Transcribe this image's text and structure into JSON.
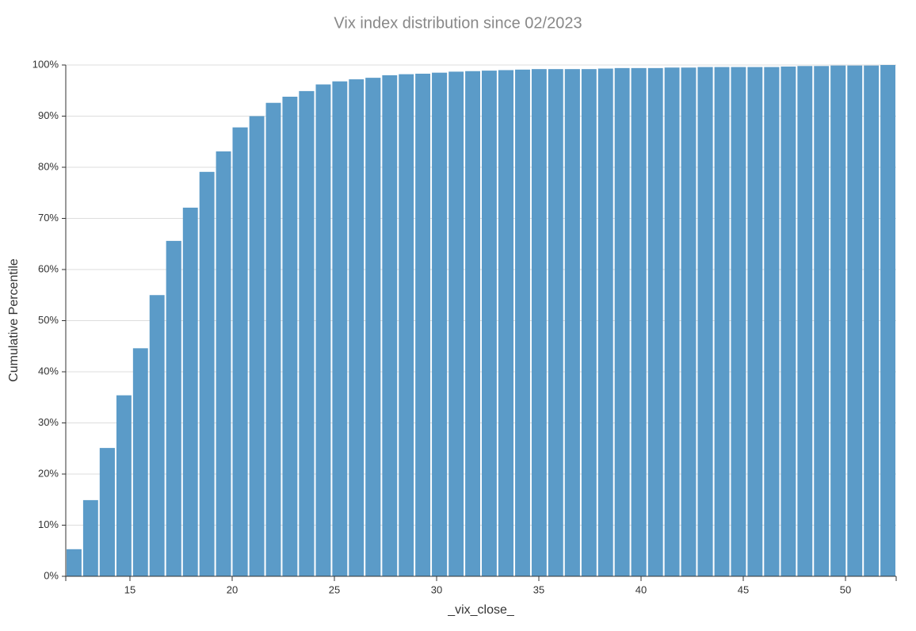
{
  "chart_data": {
    "type": "histogram",
    "title": "Vix index distribution since 02/2023",
    "x_label": "_vix_close_",
    "y_label": "Cumulative Percentile",
    "color": "#5b9bc8",
    "bins": [
      11.86,
      12.67,
      13.48,
      14.3,
      15.11,
      15.92,
      16.73,
      17.55,
      18.36,
      19.17,
      19.98,
      20.8,
      21.61,
      22.42,
      23.23,
      24.05,
      24.86,
      25.67,
      26.48,
      27.3,
      28.11,
      28.92,
      29.73,
      30.55,
      31.36,
      32.17,
      32.98,
      33.8,
      34.61,
      35.42,
      36.23,
      37.05,
      37.86,
      38.67,
      39.48,
      40.3,
      41.11,
      41.92,
      42.73,
      43.55,
      44.36,
      45.17,
      45.98,
      46.8,
      47.61,
      48.42,
      49.23,
      50.05,
      50.86,
      51.67,
      52.48
    ],
    "values": [
      5.3,
      14.9,
      25.1,
      35.4,
      44.6,
      55.0,
      65.6,
      72.1,
      79.1,
      83.1,
      87.8,
      90.0,
      92.6,
      93.8,
      94.9,
      96.2,
      96.8,
      97.2,
      97.5,
      98.0,
      98.2,
      98.3,
      98.5,
      98.7,
      98.8,
      98.9,
      99.0,
      99.1,
      99.2,
      99.2,
      99.2,
      99.2,
      99.3,
      99.4,
      99.4,
      99.4,
      99.5,
      99.5,
      99.6,
      99.6,
      99.6,
      99.6,
      99.6,
      99.7,
      99.8,
      99.8,
      99.9,
      99.9,
      99.9,
      100
    ],
    "xlim": [
      11.86,
      52.48
    ],
    "xticks": [
      15,
      20,
      25,
      30,
      35,
      40,
      45,
      50
    ],
    "ylim": [
      0,
      100
    ],
    "yticks": [
      {
        "value": 0,
        "label": "0%"
      },
      {
        "value": 10,
        "label": "10%"
      },
      {
        "value": 20,
        "label": "20%"
      },
      {
        "value": 30,
        "label": "30%"
      },
      {
        "value": 40,
        "label": "40%"
      },
      {
        "value": 50,
        "label": "50%"
      },
      {
        "value": 60,
        "label": "60%"
      },
      {
        "value": 70,
        "label": "70%"
      },
      {
        "value": 80,
        "label": "80%"
      },
      {
        "value": 90,
        "label": "90%"
      },
      {
        "value": 100,
        "label": "100%"
      }
    ],
    "grid": true
  }
}
